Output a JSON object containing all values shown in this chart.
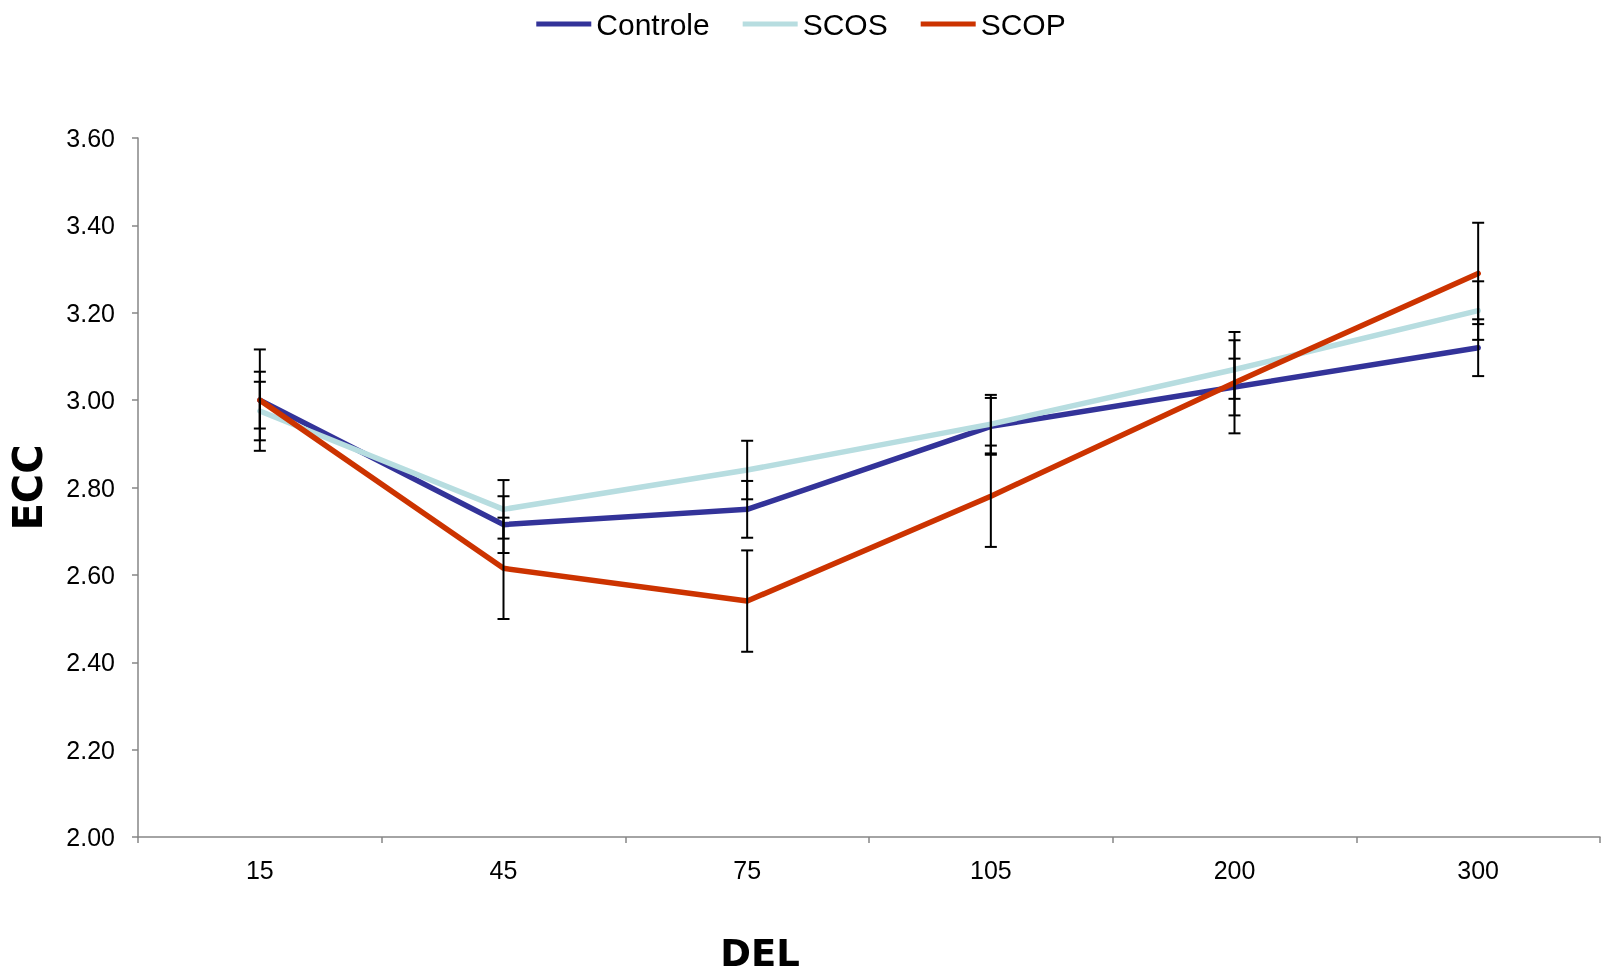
{
  "chart_data": {
    "type": "line",
    "xlabel": "DEL",
    "ylabel": "ECC",
    "categories": [
      "15",
      "45",
      "75",
      "105",
      "200",
      "300"
    ],
    "series": [
      {
        "name": "Controle",
        "color": "#333399",
        "values": [
          3.0,
          2.715,
          2.75,
          2.94,
          3.03,
          3.12
        ],
        "errors": [
          0.065,
          0.065,
          0.065,
          0.065,
          0.065,
          0.065
        ]
      },
      {
        "name": "SCOS",
        "color": "#b7dde0",
        "values": [
          2.975,
          2.75,
          2.84,
          2.945,
          3.07,
          3.205
        ],
        "errors": [
          0.067,
          0.067,
          0.067,
          0.067,
          0.067,
          0.067
        ]
      },
      {
        "name": "SCOP",
        "color": "#cc3300",
        "values": [
          3.0,
          2.615,
          2.54,
          2.78,
          3.04,
          3.29
        ],
        "errors": [
          0.116,
          0.116,
          0.116,
          0.116,
          0.116,
          0.116
        ]
      }
    ],
    "ylim": [
      2,
      3.6
    ],
    "yticks": [
      {
        "value": 2,
        "label": "2.00"
      },
      {
        "value": 2.2,
        "label": "2.20"
      },
      {
        "value": 2.4,
        "label": "2.40"
      },
      {
        "value": 2.6,
        "label": "2.60"
      },
      {
        "value": 2.8,
        "label": "2.80"
      },
      {
        "value": 3,
        "label": "3.00"
      },
      {
        "value": 3.2,
        "label": "3.20"
      },
      {
        "value": 3.4,
        "label": "3.40"
      },
      {
        "value": 3.6,
        "label": "3.60"
      }
    ],
    "legend": "top",
    "marker": "none",
    "line_style": "solid"
  }
}
